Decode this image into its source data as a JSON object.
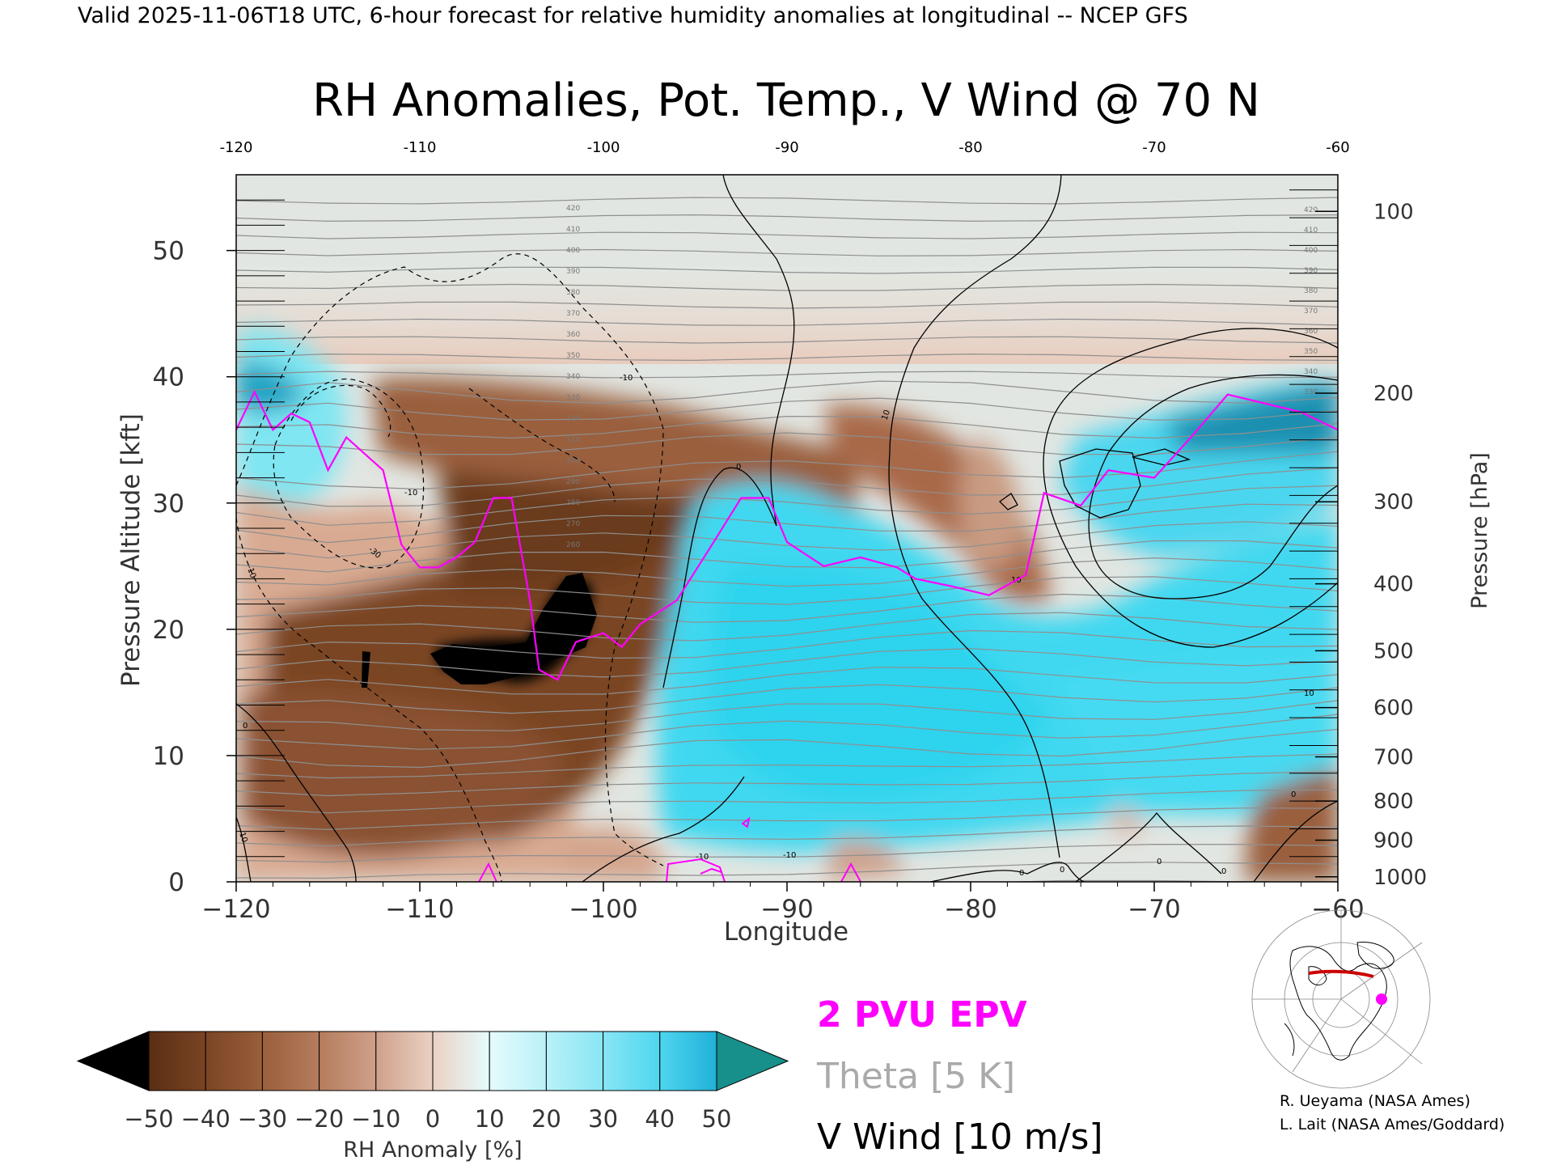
{
  "header": "Valid 2025-11-06T18 UTC, 6-hour forecast for relative humidity anomalies at longitudinal -- NCEP GFS",
  "chart_data": {
    "type": "heatmap",
    "title": "RH Anomalies, Pot. Temp., V Wind @ 70 N",
    "xlabel": "Longitude",
    "ylabel_left": "Pressure Altitude [kft]",
    "ylabel_right": "Pressure [hPa]",
    "xlim": [
      -120,
      -60
    ],
    "ylim": [
      0,
      56
    ],
    "x_ticks": [
      "-120",
      "-110",
      "-100",
      "-90",
      "-80",
      "-70",
      "-60"
    ],
    "top_x_ticks": [
      "-120",
      "-110",
      "-100",
      "-90",
      "-80",
      "-70",
      "-60"
    ],
    "y_ticks_left": [
      "0",
      "10",
      "20",
      "30",
      "40",
      "50"
    ],
    "pressure_ticks": [
      {
        "label": "100",
        "kft": 53.1
      },
      {
        "label": "200",
        "kft": 38.7
      },
      {
        "label": "300",
        "kft": 30.1
      },
      {
        "label": "400",
        "kft": 23.6
      },
      {
        "label": "500",
        "kft": 18.3
      },
      {
        "label": "600",
        "kft": 13.8
      },
      {
        "label": "700",
        "kft": 9.9
      },
      {
        "label": "800",
        "kft": 6.4
      },
      {
        "label": "900",
        "kft": 3.3
      },
      {
        "label": "1000",
        "kft": 0.4
      }
    ],
    "epv_2pvu_line": [
      [
        -120,
        35.8
      ],
      [
        -119,
        38.8
      ],
      [
        -118,
        35.8
      ],
      [
        -117,
        37.1
      ],
      [
        -116,
        36.4
      ],
      [
        -115,
        32.6
      ],
      [
        -114,
        35.2
      ],
      [
        -113,
        33.9
      ],
      [
        -112,
        32.6
      ],
      [
        -111,
        26.7
      ],
      [
        -110,
        24.9
      ],
      [
        -109,
        24.9
      ],
      [
        -108,
        25.7
      ],
      [
        -107,
        26.9
      ],
      [
        -106,
        30.4
      ],
      [
        -105,
        30.4
      ],
      [
        -104,
        22.3
      ],
      [
        -103.5,
        16.8
      ],
      [
        -102.5,
        16.0
      ],
      [
        -101.5,
        19.0
      ],
      [
        -100,
        19.7
      ],
      [
        -99,
        18.6
      ],
      [
        -98,
        20.4
      ],
      [
        -96,
        22.3
      ],
      [
        -94,
        26.9
      ],
      [
        -92.5,
        30.4
      ],
      [
        -91,
        30.4
      ],
      [
        -90,
        26.9
      ],
      [
        -88,
        25.0
      ],
      [
        -86,
        25.7
      ],
      [
        -84,
        24.9
      ],
      [
        -83,
        24.0
      ],
      [
        -81,
        23.4
      ],
      [
        -79,
        22.7
      ],
      [
        -77,
        24.3
      ],
      [
        -76,
        30.8
      ],
      [
        -74,
        29.8
      ],
      [
        -72.5,
        32.6
      ],
      [
        -70,
        32.0
      ],
      [
        -68,
        35.2
      ],
      [
        -66,
        38.6
      ],
      [
        -64,
        37.9
      ],
      [
        -62,
        37.2
      ],
      [
        -60,
        35.8
      ]
    ],
    "theta_contour_interval_K": 5,
    "theta_labels": [
      "420",
      "410",
      "400",
      "390",
      "380",
      "370",
      "360",
      "350",
      "340",
      "330",
      "320",
      "310",
      "300",
      "290",
      "280",
      "270",
      "260"
    ],
    "vwind_contour_interval_ms": 10,
    "vwind_labels": [
      "0",
      "10",
      "-10",
      "-30",
      "0",
      "10",
      "30",
      "-10",
      "0",
      "0",
      "10"
    ],
    "colorbar": {
      "label": "RH Anomaly [%]",
      "ticks": [
        "-50",
        "-40",
        "-30",
        "-20",
        "-10",
        "0",
        "10",
        "20",
        "30",
        "40",
        "50"
      ],
      "colors": [
        "#5a2e14",
        "#7a4424",
        "#9a5f3c",
        "#b57c5d",
        "#cfa08a",
        "#ead1c4",
        "#e6fbfd",
        "#b9f1f8",
        "#88e6f4",
        "#4fd6ef",
        "#20b0d8"
      ],
      "under_color": "#000000",
      "over_color": "#178f8a"
    },
    "legend": {
      "epv": {
        "label": "2 PVU EPV",
        "color": "#ff00ff"
      },
      "theta": {
        "label": "Theta [5 K]",
        "color": "#aaaaaa"
      },
      "vwind": {
        "label": "V Wind [10 m/s]",
        "color": "#000000"
      }
    }
  },
  "credits": [
    "R. Ueyama (NASA Ames)",
    "L. Lait (NASA Ames/Goddard)"
  ]
}
